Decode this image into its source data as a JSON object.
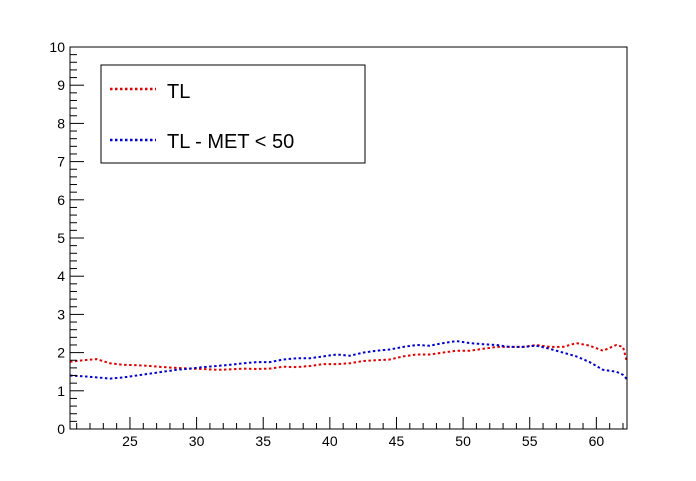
{
  "chart_data": {
    "type": "line",
    "title": "",
    "xlabel": "",
    "ylabel": "",
    "xlim": [
      20.5,
      62.3
    ],
    "ylim": [
      0,
      10
    ],
    "x_ticks": [
      25,
      30,
      35,
      40,
      45,
      50,
      55,
      60
    ],
    "y_ticks": [
      0,
      1,
      2,
      3,
      4,
      5,
      6,
      7,
      8,
      9,
      10
    ],
    "grid": false,
    "legend_position": "top-left",
    "line_style": "dotted",
    "series": [
      {
        "name": "TL",
        "color": "#dd0000",
        "x": [
          20.5,
          21.5,
          22.5,
          23.5,
          24.5,
          25.5,
          26.5,
          27.5,
          28.5,
          29.5,
          30.5,
          31.5,
          32.5,
          33.5,
          34.5,
          35.5,
          36.5,
          37.5,
          38.5,
          39.5,
          40.5,
          41.5,
          42.5,
          43.5,
          44.5,
          45.5,
          46.5,
          47.5,
          48.5,
          49.5,
          50.5,
          51.5,
          52.5,
          53.5,
          54.5,
          55.5,
          56.5,
          57.5,
          58.5,
          59.5,
          60.5,
          61.5,
          62.0,
          62.3
        ],
        "y": [
          1.76,
          1.8,
          1.83,
          1.72,
          1.68,
          1.67,
          1.65,
          1.62,
          1.6,
          1.58,
          1.57,
          1.55,
          1.56,
          1.58,
          1.57,
          1.58,
          1.63,
          1.62,
          1.65,
          1.7,
          1.7,
          1.72,
          1.78,
          1.8,
          1.82,
          1.9,
          1.95,
          1.95,
          2.0,
          2.05,
          2.05,
          2.1,
          2.15,
          2.15,
          2.15,
          2.2,
          2.15,
          2.15,
          2.25,
          2.18,
          2.05,
          2.2,
          2.15,
          1.75
        ]
      },
      {
        "name": "TL - MET < 50",
        "color": "#0000cc",
        "x": [
          20.5,
          21.5,
          22.5,
          23.5,
          24.5,
          25.5,
          26.5,
          27.5,
          28.5,
          29.5,
          30.5,
          31.5,
          32.5,
          33.5,
          34.5,
          35.5,
          36.5,
          37.5,
          38.5,
          39.5,
          40.5,
          41.5,
          42.5,
          43.5,
          44.5,
          45.5,
          46.5,
          47.5,
          48.5,
          49.5,
          50.5,
          51.5,
          52.5,
          53.5,
          54.5,
          55.5,
          56.5,
          57.5,
          58.5,
          59.5,
          60.5,
          61.5,
          62.0,
          62.3
        ],
        "y": [
          1.4,
          1.38,
          1.35,
          1.32,
          1.35,
          1.4,
          1.45,
          1.5,
          1.55,
          1.58,
          1.62,
          1.65,
          1.68,
          1.72,
          1.75,
          1.75,
          1.82,
          1.85,
          1.85,
          1.9,
          1.95,
          1.92,
          2.0,
          2.05,
          2.08,
          2.15,
          2.2,
          2.18,
          2.25,
          2.3,
          2.25,
          2.22,
          2.2,
          2.15,
          2.15,
          2.18,
          2.1,
          2.0,
          1.9,
          1.75,
          1.55,
          1.5,
          1.42,
          1.3
        ]
      }
    ]
  }
}
